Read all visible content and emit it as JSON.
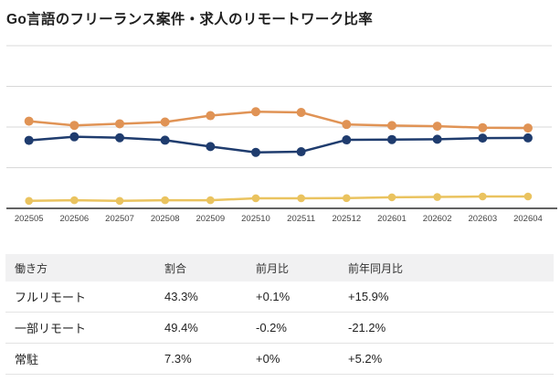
{
  "title": "Go言語のフリーランス案件・求人のリモートワーク比率",
  "colors": {
    "partial_remote": "#E09355",
    "full_remote": "#1F3C6E",
    "onsite": "#EAC35F",
    "gridline": "#D8D8D8",
    "axis": "#2E2E2E",
    "tick_label": "#444444",
    "header_bg": "#F1F1F2"
  },
  "chart_data": {
    "type": "line",
    "title": "Go言語のフリーランス案件・求人のリモートワーク比率",
    "x": [
      "202505",
      "202506",
      "202507",
      "202508",
      "202509",
      "202510",
      "202511",
      "202512",
      "202601",
      "202602",
      "202603",
      "202604"
    ],
    "xlabel": "",
    "ylabel": "",
    "ylim": [
      0,
      100
    ],
    "grid": "horizontal gridlines every 25, no y tick labels",
    "legend": "none",
    "series": [
      {
        "key": "partial_remote",
        "name": "一部リモート",
        "color": "#E09355",
        "values": [
          53.6,
          51.0,
          52.0,
          53.1,
          57.0,
          59.4,
          59.0,
          51.6,
          50.9,
          50.5,
          49.6,
          49.4
        ]
      },
      {
        "key": "full_remote",
        "name": "フルリモート",
        "color": "#1F3C6E",
        "values": [
          41.8,
          44.0,
          43.4,
          41.9,
          38.0,
          34.4,
          34.8,
          42.1,
          42.3,
          42.5,
          43.2,
          43.3
        ]
      },
      {
        "key": "onsite",
        "name": "常駐",
        "color": "#EAC35F",
        "values": [
          4.6,
          5.0,
          4.6,
          5.0,
          5.0,
          6.2,
          6.2,
          6.3,
          6.8,
          7.0,
          7.3,
          7.3
        ]
      }
    ]
  },
  "table": {
    "headers": [
      "働き方",
      "割合",
      "前月比",
      "前年同月比"
    ],
    "rows": [
      {
        "label": "フルリモート",
        "share": "43.3%",
        "mom": "+0.1%",
        "yoy": "+15.9%"
      },
      {
        "label": "一部リモート",
        "share": "49.4%",
        "mom": "-0.2%",
        "yoy": "-21.2%"
      },
      {
        "label": "常駐",
        "share": "7.3%",
        "mom": "+0%",
        "yoy": "+5.2%"
      }
    ]
  }
}
